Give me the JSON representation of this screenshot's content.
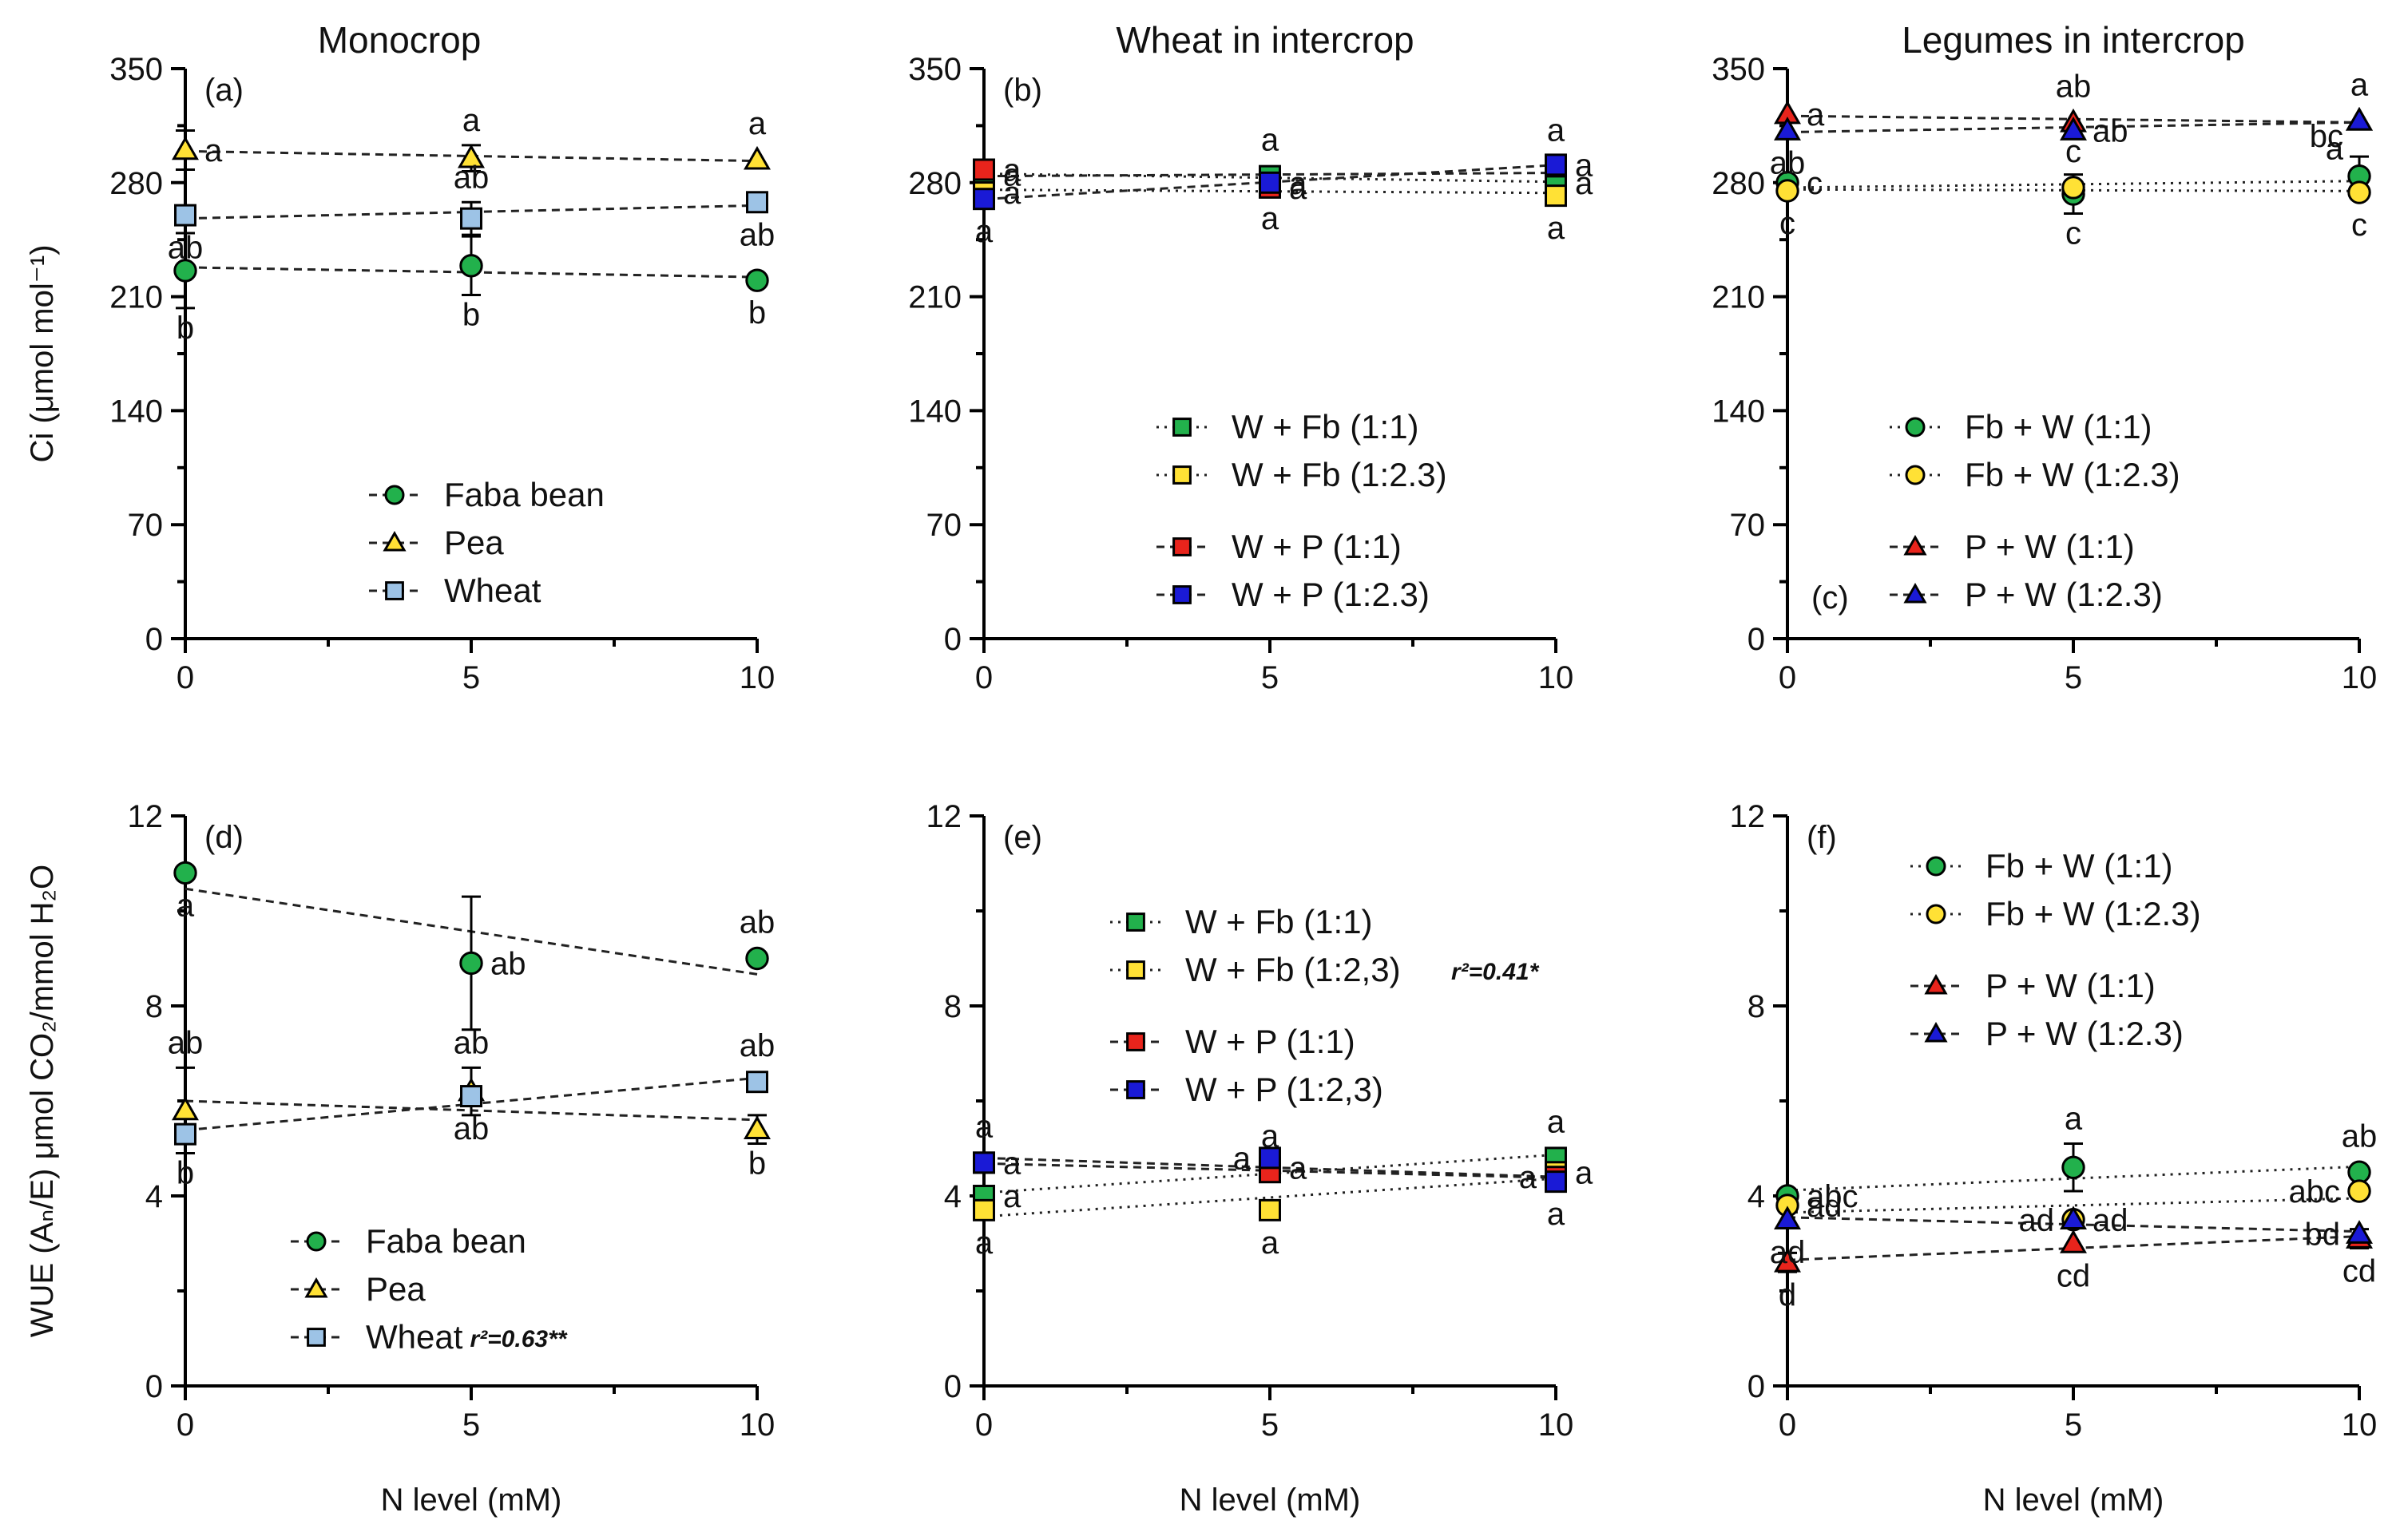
{
  "figure": {
    "column_titles": [
      "Monocrop",
      "Wheat in intercrop",
      "Legumes in intercrop"
    ],
    "row_ylabels": [
      "Ci (μmol mol⁻¹)",
      "WUE (Aₙ/E) μmol CO₂/mmol H₂O"
    ],
    "xlabel": "N level (mM)"
  },
  "chart_data": [
    {
      "panel": "(a)",
      "type": "scatter",
      "row": 0,
      "col": 0,
      "title": "Monocrop",
      "xlabel": "",
      "ylabel": "Ci (μmol mol⁻¹)",
      "x": [
        0,
        5,
        10
      ],
      "xlim": [
        0,
        10
      ],
      "ylim": [
        0,
        350
      ],
      "yticks": [
        0,
        70,
        140,
        210,
        280,
        350
      ],
      "xticks": [
        0,
        5,
        10
      ],
      "label_pos": "top-left",
      "series": [
        {
          "name": "Faba bean",
          "marker": "circle",
          "color": "#22b14c",
          "line": "dash",
          "values": [
            226,
            229,
            220
          ],
          "err": [
            23,
            18,
            0
          ],
          "letters": [
            "b",
            "b",
            "b"
          ],
          "letter_dir": [
            "below",
            "below",
            "below"
          ]
        },
        {
          "name": "Pea",
          "marker": "triangle",
          "color": "#ffe135",
          "line": "dash",
          "values": [
            300,
            295,
            294
          ],
          "err": [
            12,
            8,
            0
          ],
          "letters": [
            "a",
            "a",
            "a"
          ],
          "letter_dir": [
            "right",
            "above",
            "above"
          ]
        },
        {
          "name": "Wheat",
          "marker": "square",
          "color": "#9dc3e6",
          "line": "dash",
          "values": [
            260,
            258,
            268
          ],
          "err": [
            0,
            10,
            0
          ],
          "letters": [
            "ab",
            "ab",
            "ab"
          ],
          "letter_dir": [
            "below",
            "above",
            "below"
          ]
        }
      ],
      "legend": {
        "position": "bottom-center",
        "entries": [
          "Faba bean",
          "Pea",
          "Wheat"
        ],
        "groups": [
          3
        ],
        "r2": ""
      }
    },
    {
      "panel": "(b)",
      "type": "scatter",
      "row": 0,
      "col": 1,
      "title": "Wheat in intercrop",
      "xlabel": "",
      "ylabel": "",
      "x": [
        0,
        5,
        10
      ],
      "xlim": [
        0,
        10
      ],
      "ylim": [
        0,
        350
      ],
      "yticks": [
        0,
        70,
        140,
        210,
        280,
        350
      ],
      "xticks": [
        0,
        5,
        10
      ],
      "label_pos": "top-left",
      "series": [
        {
          "name": "W + Fb (1:1)",
          "marker": "square",
          "color": "#22b14c",
          "line": "dot",
          "values": [
            285,
            284,
            280
          ],
          "err": [
            0,
            0,
            0
          ],
          "letters": [
            "a",
            "a",
            "a"
          ],
          "letter_dir": [
            "right",
            "above",
            "right"
          ]
        },
        {
          "name": "W + Fb (1:2.3)",
          "marker": "square",
          "color": "#ffe135",
          "line": "dot",
          "values": [
            274,
            278,
            272
          ],
          "err": [
            0,
            0,
            0
          ],
          "letters": [
            "a",
            "a",
            "a"
          ],
          "letter_dir": [
            "right",
            "below",
            "below"
          ]
        },
        {
          "name": "W + P (1:1)",
          "marker": "square",
          "color": "#e8241c",
          "line": "dash",
          "values": [
            288,
            277,
            290
          ],
          "err": [
            0,
            0,
            0
          ],
          "letters": [
            "a",
            "a",
            "a"
          ],
          "letter_dir": [
            "right",
            "right",
            "above"
          ]
        },
        {
          "name": "W + P (1:2.3)",
          "marker": "square",
          "color": "#1a1ad6",
          "line": "dash",
          "values": [
            270,
            280,
            291
          ],
          "err": [
            0,
            0,
            0
          ],
          "letters": [
            "a",
            "a",
            "a"
          ],
          "letter_dir": [
            "below",
            "right",
            "right"
          ]
        }
      ],
      "legend": {
        "position": "bottom-center",
        "entries": [
          "W + Fb (1:1)",
          "W + Fb (1:2.3)",
          "W + P (1:1)",
          "W + P (1:2.3)"
        ],
        "groups": [
          2,
          2
        ],
        "r2": ""
      }
    },
    {
      "panel": "(c)",
      "type": "scatter",
      "row": 0,
      "col": 2,
      "title": "Legumes in intercrop",
      "xlabel": "",
      "ylabel": "",
      "x": [
        0,
        5,
        10
      ],
      "xlim": [
        0,
        10
      ],
      "ylim": [
        0,
        350
      ],
      "yticks": [
        0,
        70,
        140,
        210,
        280,
        350
      ],
      "xticks": [
        0,
        5,
        10
      ],
      "label_pos": "bottom-left",
      "series": [
        {
          "name": "Fb + W (1:1)",
          "marker": "circle",
          "color": "#22b14c",
          "line": "dot",
          "values": [
            280,
            273,
            284
          ],
          "err": [
            0,
            12,
            12
          ],
          "letters": [
            "c",
            "c",
            "bc"
          ],
          "letter_dir": [
            "right",
            "below",
            "above-left"
          ]
        },
        {
          "name": "Fb + W (1:2.3)",
          "marker": "circle",
          "color": "#ffe135",
          "line": "dot",
          "values": [
            275,
            277,
            274
          ],
          "err": [
            0,
            0,
            0
          ],
          "letters": [
            "c",
            "c",
            "c"
          ],
          "letter_dir": [
            "below",
            "above",
            "below"
          ]
        },
        {
          "name": "P + W (1:1)",
          "marker": "triangle",
          "color": "#e8241c",
          "line": "dash",
          "values": [
            322,
            317,
            318
          ],
          "err": [
            0,
            0,
            0
          ],
          "letters": [
            "a",
            "ab",
            "a"
          ],
          "letter_dir": [
            "right",
            "above",
            "above"
          ]
        },
        {
          "name": "P + W (1:2.3)",
          "marker": "triangle",
          "color": "#1a1ad6",
          "line": "dash",
          "values": [
            312,
            312,
            318
          ],
          "err": [
            0,
            0,
            0
          ],
          "letters": [
            "ab",
            "ab",
            "a"
          ],
          "letter_dir": [
            "below",
            "right",
            "below-left"
          ]
        }
      ],
      "legend": {
        "position": "center-right",
        "entries": [
          "Fb + W (1:1)",
          "Fb + W (1:2.3)",
          "P + W (1:1)",
          "P + W (1:2.3)"
        ],
        "groups": [
          2,
          2
        ],
        "r2": ""
      }
    },
    {
      "panel": "(d)",
      "type": "scatter",
      "row": 1,
      "col": 0,
      "title": "",
      "xlabel": "N level (mM)",
      "ylabel": "WUE (Aₙ/E) μmol CO₂/mmol H₂O",
      "x": [
        0,
        5,
        10
      ],
      "xlim": [
        0,
        10
      ],
      "ylim": [
        0,
        12
      ],
      "yticks": [
        0,
        4,
        8,
        12
      ],
      "xticks": [
        0,
        5,
        10
      ],
      "label_pos": "top-left",
      "series": [
        {
          "name": "Faba bean",
          "marker": "circle",
          "color": "#22b14c",
          "line": "dash",
          "values": [
            10.8,
            8.9,
            9.0
          ],
          "err": [
            0,
            1.4,
            0
          ],
          "letters": [
            "a",
            "ab",
            "ab"
          ],
          "letter_dir": [
            "below",
            "right",
            "above"
          ]
        },
        {
          "name": "Pea",
          "marker": "triangle",
          "color": "#ffe135",
          "line": "dash",
          "values": [
            5.8,
            6.2,
            5.4
          ],
          "err": [
            0.9,
            0.5,
            0.3
          ],
          "letters": [
            "ab",
            "ab",
            "b"
          ],
          "letter_dir": [
            "above",
            "above",
            "below"
          ]
        },
        {
          "name": "Wheat",
          "marker": "square",
          "color": "#9dc3e6",
          "line": "dash",
          "values": [
            5.3,
            6.1,
            6.4
          ],
          "err": [
            0.4,
            0,
            0
          ],
          "letters": [
            "b",
            "ab",
            "ab"
          ],
          "letter_dir": [
            "below",
            "below",
            "above"
          ]
        }
      ],
      "legend": {
        "position": "bottom-center",
        "entries": [
          "Faba bean",
          "Pea",
          "Wheat"
        ],
        "groups": [
          3
        ],
        "r2": "r²=0.63**"
      }
    },
    {
      "panel": "(e)",
      "type": "scatter",
      "row": 1,
      "col": 1,
      "title": "",
      "xlabel": "N level (mM)",
      "ylabel": "",
      "x": [
        0,
        5,
        10
      ],
      "xlim": [
        0,
        10
      ],
      "ylim": [
        0,
        12
      ],
      "yticks": [
        0,
        4,
        8,
        12
      ],
      "xticks": [
        0,
        5,
        10
      ],
      "label_pos": "top-left",
      "series": [
        {
          "name": "W + Fb (1:1)",
          "marker": "square",
          "color": "#22b14c",
          "line": "dot",
          "values": [
            4.0,
            4.6,
            4.8
          ],
          "err": [
            0,
            0,
            0
          ],
          "letters": [
            "a",
            "a",
            "a"
          ],
          "letter_dir": [
            "right",
            "right",
            "above"
          ]
        },
        {
          "name": "W + Fb (1:2,3)",
          "marker": "square",
          "color": "#ffe135",
          "line": "dot",
          "values": [
            3.7,
            3.7,
            4.5
          ],
          "err": [
            0,
            0,
            0
          ],
          "letters": [
            "a",
            "a",
            "a"
          ],
          "letter_dir": [
            "below",
            "below",
            "right"
          ]
        },
        {
          "name": "W + P (1:1)",
          "marker": "square",
          "color": "#e8241c",
          "line": "dash",
          "values": [
            4.7,
            4.5,
            4.4
          ],
          "err": [
            0,
            0,
            0
          ],
          "letters": [
            "a",
            "a",
            "a"
          ],
          "letter_dir": [
            "right",
            "above",
            "left"
          ]
        },
        {
          "name": "W + P (1:2,3)",
          "marker": "square",
          "color": "#1a1ad6",
          "line": "dash",
          "values": [
            4.7,
            4.8,
            4.3
          ],
          "err": [
            0,
            0,
            0
          ],
          "letters": [
            "a",
            "a",
            "a"
          ],
          "letter_dir": [
            "above",
            "left",
            "below"
          ]
        }
      ],
      "legend": {
        "position": "top-center",
        "entries": [
          "W + Fb (1:1)",
          "W + Fb (1:2,3)",
          "W + P (1:1)",
          "W + P (1:2,3)"
        ],
        "groups": [
          2,
          2
        ],
        "r2": "r²=0.41*"
      }
    },
    {
      "panel": "(f)",
      "type": "scatter",
      "row": 1,
      "col": 2,
      "title": "",
      "xlabel": "N level (mM)",
      "ylabel": "",
      "x": [
        0,
        5,
        10
      ],
      "xlim": [
        0,
        10
      ],
      "ylim": [
        0,
        12
      ],
      "yticks": [
        0,
        4,
        8,
        12
      ],
      "xticks": [
        0,
        5,
        10
      ],
      "label_pos": "top-left",
      "series": [
        {
          "name": "Fb + W (1:1)",
          "marker": "circle",
          "color": "#22b14c",
          "line": "dot",
          "values": [
            4.0,
            4.6,
            4.5
          ],
          "err": [
            0,
            0.5,
            0
          ],
          "letters": [
            "abc",
            "a",
            "ab"
          ],
          "letter_dir": [
            "right",
            "above",
            "above"
          ]
        },
        {
          "name": "Fb + W (1:2.3)",
          "marker": "circle",
          "color": "#ffe135",
          "line": "dot",
          "values": [
            3.8,
            3.5,
            4.1
          ],
          "err": [
            0,
            0,
            0
          ],
          "letters": [
            "ad",
            "ad",
            "abc"
          ],
          "letter_dir": [
            "right",
            "right",
            "left"
          ]
        },
        {
          "name": "P + W (1:1)",
          "marker": "triangle",
          "color": "#e8241c",
          "line": "dash",
          "values": [
            2.6,
            3.0,
            3.1
          ],
          "err": [
            0.2,
            0,
            0.2
          ],
          "letters": [
            "d",
            "cd",
            "cd"
          ],
          "letter_dir": [
            "below",
            "below",
            "below"
          ]
        },
        {
          "name": "P + W (1:2.3)",
          "marker": "triangle",
          "color": "#1a1ad6",
          "line": "dash",
          "values": [
            3.5,
            3.5,
            3.2
          ],
          "err": [
            0,
            0,
            0
          ],
          "letters": [
            "ad",
            "ad",
            "bd"
          ],
          "letter_dir": [
            "below",
            "left",
            "left"
          ]
        }
      ],
      "legend": {
        "position": "top-center",
        "entries": [
          "Fb + W (1:1)",
          "Fb + W (1:2.3)",
          "P + W (1:1)",
          "P + W (1:2.3)"
        ],
        "groups": [
          2,
          2
        ],
        "r2": ""
      }
    }
  ]
}
